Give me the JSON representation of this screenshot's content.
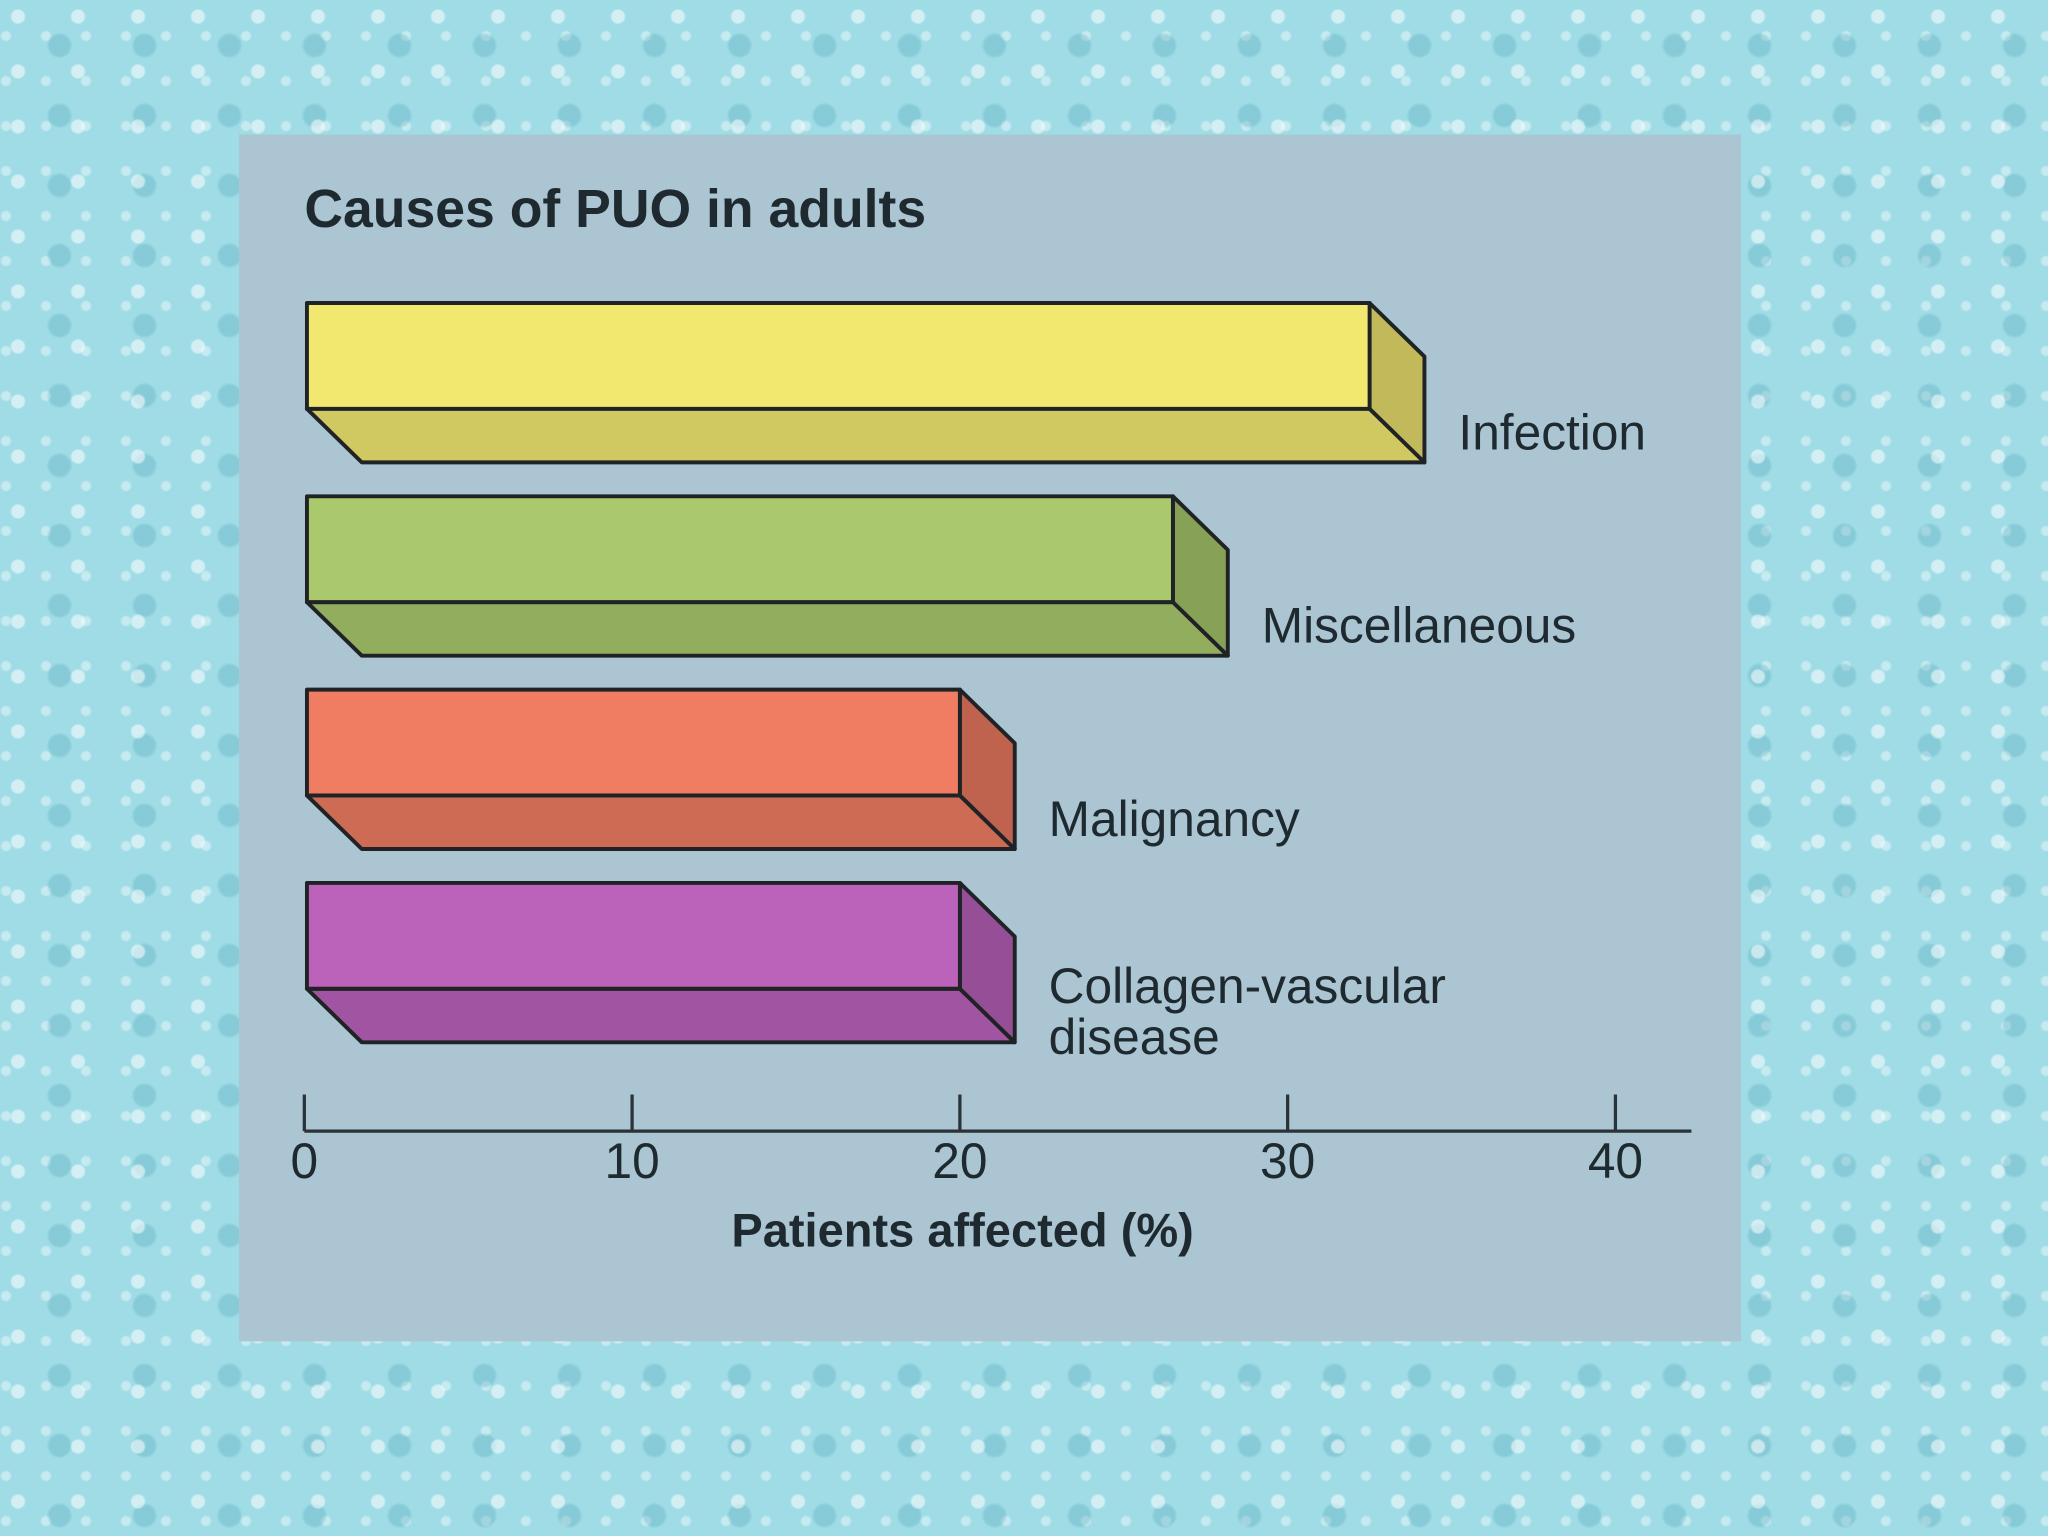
{
  "chart_data": {
    "type": "bar",
    "title": "Causes of PUO in adults",
    "x_label": "Patients affected (%)",
    "categories": [
      "Infection",
      "Miscellaneous",
      "Malignancy",
      "Collagen-vascular disease"
    ],
    "values": [
      32.5,
      26.5,
      20,
      20
    ],
    "colors": [
      "#f2e870",
      "#a9c96c",
      "#f07c62",
      "#bb62bb"
    ],
    "xlim": [
      0,
      42
    ],
    "xticks": [
      0,
      10,
      20,
      30,
      40
    ]
  }
}
